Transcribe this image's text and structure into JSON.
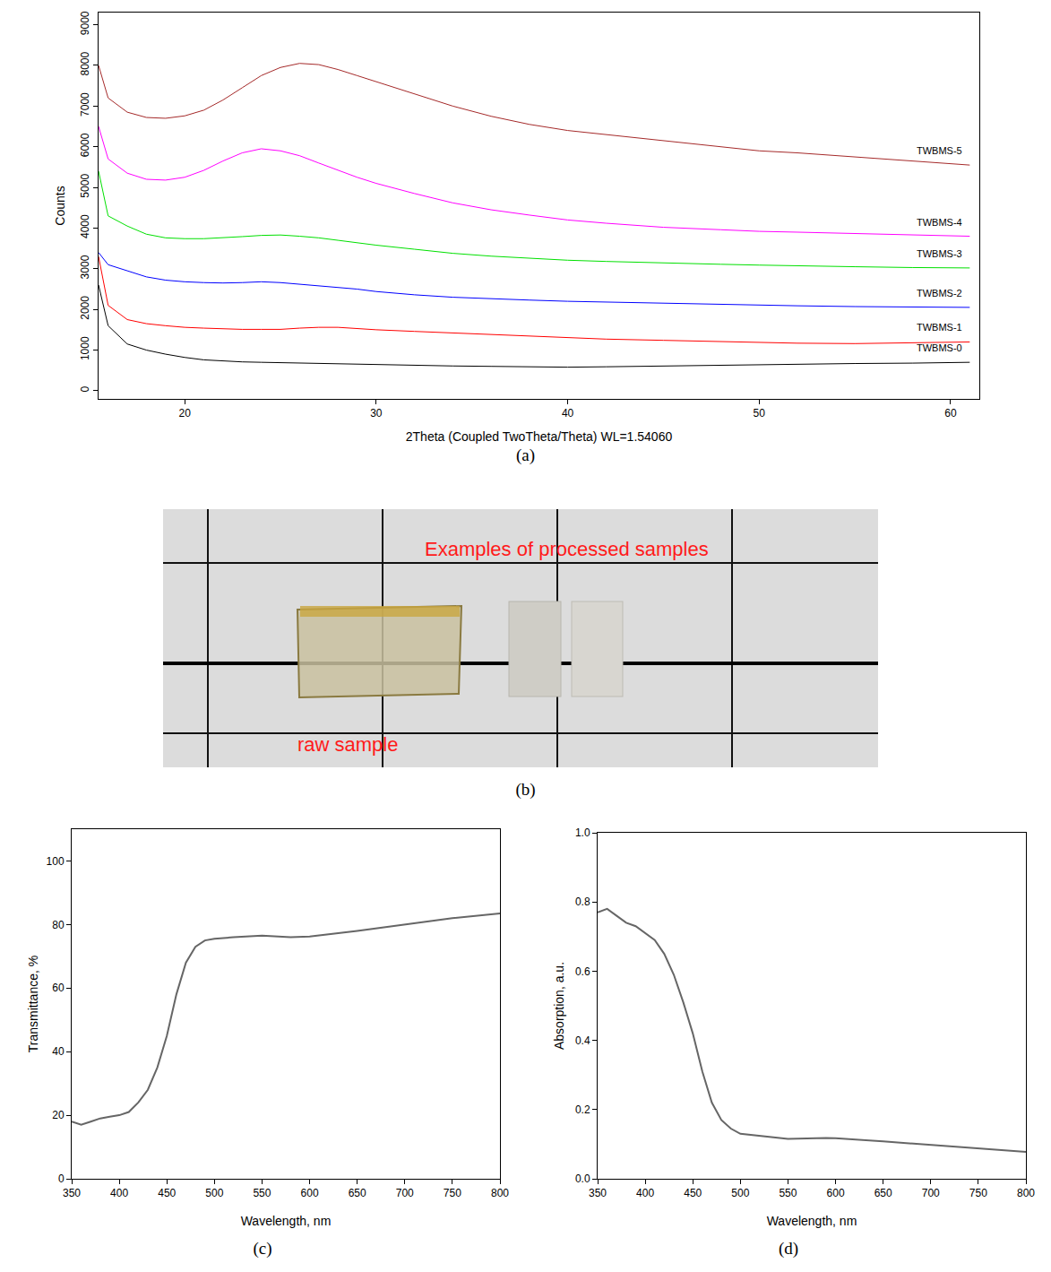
{
  "chart_data": [
    {
      "type": "line",
      "panel": "(a)",
      "x_label": "2Theta (Coupled TwoTheta/Theta) WL=1.54060",
      "y_label": "Counts",
      "x": [
        15.5,
        16,
        17,
        18,
        19,
        20,
        21,
        22,
        23,
        24,
        25,
        26,
        27,
        28,
        29,
        30,
        32,
        34,
        36,
        38,
        40,
        42,
        45,
        48,
        50,
        52,
        55,
        58,
        61
      ],
      "series": [
        {
          "name": "TWBMS-5",
          "color": "#a52a2a",
          "values": [
            8000,
            7200,
            6850,
            6720,
            6700,
            6760,
            6900,
            7150,
            7450,
            7750,
            7950,
            8050,
            8020,
            7900,
            7750,
            7600,
            7300,
            7000,
            6750,
            6550,
            6400,
            6300,
            6150,
            6000,
            5900,
            5850,
            5750,
            5650,
            5550
          ]
        },
        {
          "name": "TWBMS-4",
          "color": "#ff00ff",
          "values": [
            6500,
            5700,
            5350,
            5200,
            5180,
            5250,
            5420,
            5650,
            5850,
            5950,
            5900,
            5780,
            5600,
            5420,
            5250,
            5100,
            4850,
            4620,
            4450,
            4320,
            4200,
            4120,
            4020,
            3960,
            3920,
            3900,
            3870,
            3840,
            3800
          ]
        },
        {
          "name": "TWBMS-3",
          "color": "#00e000",
          "values": [
            5400,
            4300,
            4050,
            3850,
            3760,
            3740,
            3740,
            3760,
            3790,
            3820,
            3830,
            3800,
            3760,
            3700,
            3640,
            3580,
            3480,
            3380,
            3310,
            3260,
            3210,
            3180,
            3140,
            3110,
            3090,
            3070,
            3050,
            3030,
            3020
          ]
        },
        {
          "name": "TWBMS-2",
          "color": "#0000ff",
          "values": [
            3400,
            3100,
            2950,
            2800,
            2720,
            2680,
            2660,
            2650,
            2660,
            2680,
            2660,
            2620,
            2580,
            2540,
            2500,
            2440,
            2360,
            2300,
            2260,
            2230,
            2200,
            2180,
            2160,
            2130,
            2110,
            2090,
            2070,
            2060,
            2050
          ]
        },
        {
          "name": "TWBMS-1",
          "color": "#ff0000",
          "values": [
            3300,
            2100,
            1750,
            1650,
            1600,
            1560,
            1540,
            1520,
            1510,
            1510,
            1510,
            1540,
            1560,
            1560,
            1530,
            1500,
            1460,
            1420,
            1380,
            1340,
            1300,
            1270,
            1240,
            1210,
            1190,
            1170,
            1160,
            1180,
            1200
          ]
        },
        {
          "name": "TWBMS-0",
          "color": "#000000",
          "values": [
            2600,
            1600,
            1150,
            1000,
            900,
            820,
            760,
            730,
            710,
            700,
            690,
            680,
            670,
            660,
            650,
            650,
            630,
            610,
            600,
            590,
            580,
            590,
            610,
            630,
            640,
            650,
            670,
            680,
            700
          ]
        }
      ],
      "xlim": [
        15.5,
        61.5
      ],
      "xticks": [
        20,
        30,
        40,
        50,
        60
      ],
      "ylim": [
        -200,
        9300
      ],
      "yticks": [
        0,
        1000,
        2000,
        3000,
        4000,
        5000,
        6000,
        7000,
        8000,
        9000
      ],
      "grid": false
    },
    {
      "type": "line",
      "panel": "(c)",
      "x_label": "Wavelength, nm",
      "y_label": "Transmittance, %",
      "x": [
        350,
        360,
        370,
        380,
        390,
        400,
        410,
        420,
        430,
        440,
        450,
        460,
        470,
        480,
        490,
        500,
        520,
        550,
        580,
        600,
        650,
        700,
        750,
        800
      ],
      "values": [
        18,
        17,
        18,
        19,
        19.5,
        20,
        21,
        24,
        28,
        35,
        45,
        58,
        68,
        73,
        75,
        75.5,
        76,
        76.5,
        76,
        76.2,
        78,
        80,
        82,
        83.5
      ],
      "color": "#666666",
      "xlim": [
        350,
        800
      ],
      "xticks": [
        350,
        400,
        450,
        500,
        550,
        600,
        650,
        700,
        750,
        800
      ],
      "ylim": [
        0,
        110
      ],
      "yticks": [
        0,
        20,
        40,
        60,
        80,
        100
      ],
      "grid": false
    },
    {
      "type": "line",
      "panel": "(d)",
      "x_label": "Wavelength, nm",
      "y_label": "Absorption, a.u.",
      "x": [
        350,
        360,
        370,
        380,
        390,
        400,
        410,
        420,
        430,
        440,
        450,
        460,
        470,
        480,
        490,
        500,
        550,
        590,
        600,
        650,
        700,
        750,
        800
      ],
      "values": [
        0.77,
        0.78,
        0.76,
        0.74,
        0.73,
        0.71,
        0.69,
        0.65,
        0.59,
        0.51,
        0.42,
        0.31,
        0.22,
        0.17,
        0.145,
        0.13,
        0.115,
        0.118,
        0.117,
        0.108,
        0.098,
        0.088,
        0.078
      ],
      "color": "#666666",
      "xlim": [
        350,
        800
      ],
      "xticks": [
        350,
        400,
        450,
        500,
        550,
        600,
        650,
        700,
        750,
        800
      ],
      "ylim": [
        0,
        1
      ],
      "yticks": [
        {
          "value": 0,
          "label": "0.0"
        },
        0.2,
        0.4,
        0.6,
        0.8,
        {
          "value": 1,
          "label": "1.0"
        }
      ],
      "grid": false
    }
  ],
  "photo": {
    "panel": "(b)",
    "caption": "Examples of processed samples",
    "sample_label": "raw sample"
  }
}
